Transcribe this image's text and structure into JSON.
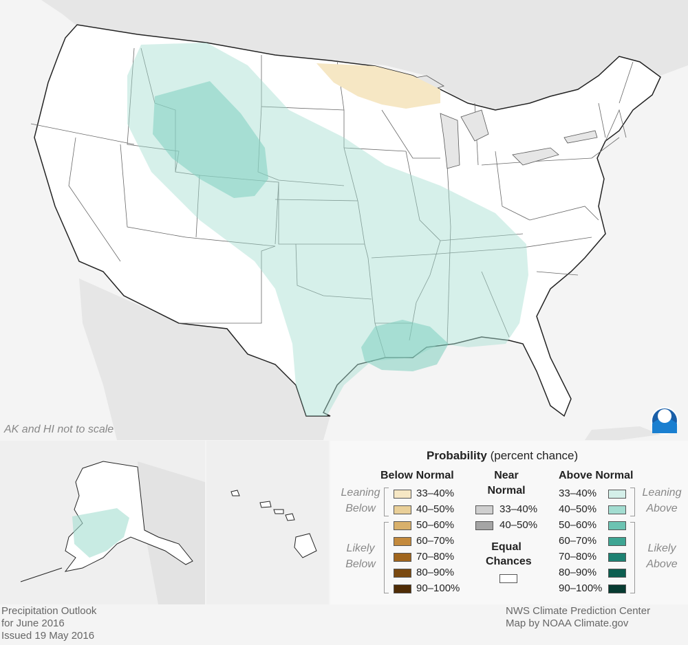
{
  "map": {
    "scale_note": "AK and HI not to scale",
    "logo_text": "NOAA",
    "colors": {
      "above_33_40": "#d4efe9",
      "above_40_50": "#a3ddd1",
      "below_33_40": "#f6e7c4",
      "ocean_land": "#e6e6e6",
      "states": "#ffffff"
    }
  },
  "legend": {
    "title": "Probability",
    "title_note": "(percent chance)",
    "below_header": "Below Normal",
    "near_header_1": "Near",
    "near_header_2": "Normal",
    "above_header": "Above Normal",
    "leaning": "Leaning",
    "below_word": "Below",
    "above_word": "Above",
    "likely": "Likely",
    "equal_1": "Equal",
    "equal_2": "Chances",
    "below": [
      {
        "label": "33–40%",
        "color": "#f6e7c4"
      },
      {
        "label": "40–50%",
        "color": "#e9cf98"
      },
      {
        "label": "50–60%",
        "color": "#d8b06b"
      },
      {
        "label": "60–70%",
        "color": "#c48a3d"
      },
      {
        "label": "70–80%",
        "color": "#a0651d"
      },
      {
        "label": "80–90%",
        "color": "#7a4910"
      },
      {
        "label": "90–100%",
        "color": "#4f2c06"
      }
    ],
    "near": [
      {
        "label": "33–40%",
        "color": "#cfcfcf"
      },
      {
        "label": "40–50%",
        "color": "#a5a5a5"
      }
    ],
    "above": [
      {
        "label": "33–40%",
        "color": "#d4efe9"
      },
      {
        "label": "40–50%",
        "color": "#a3ddd1"
      },
      {
        "label": "50–60%",
        "color": "#6cc3b2"
      },
      {
        "label": "60–70%",
        "color": "#3ea593"
      },
      {
        "label": "70–80%",
        "color": "#1d8172"
      },
      {
        "label": "80–90%",
        "color": "#0d5e50"
      },
      {
        "label": "90–100%",
        "color": "#073b31"
      }
    ]
  },
  "footer": {
    "left_1": "Precipitation Outlook",
    "left_2": "for June 2016",
    "left_3": "Issued 19 May 2016",
    "right_1": "NWS Climate Prediction Center",
    "right_2": "Map by NOAA Climate.gov"
  }
}
